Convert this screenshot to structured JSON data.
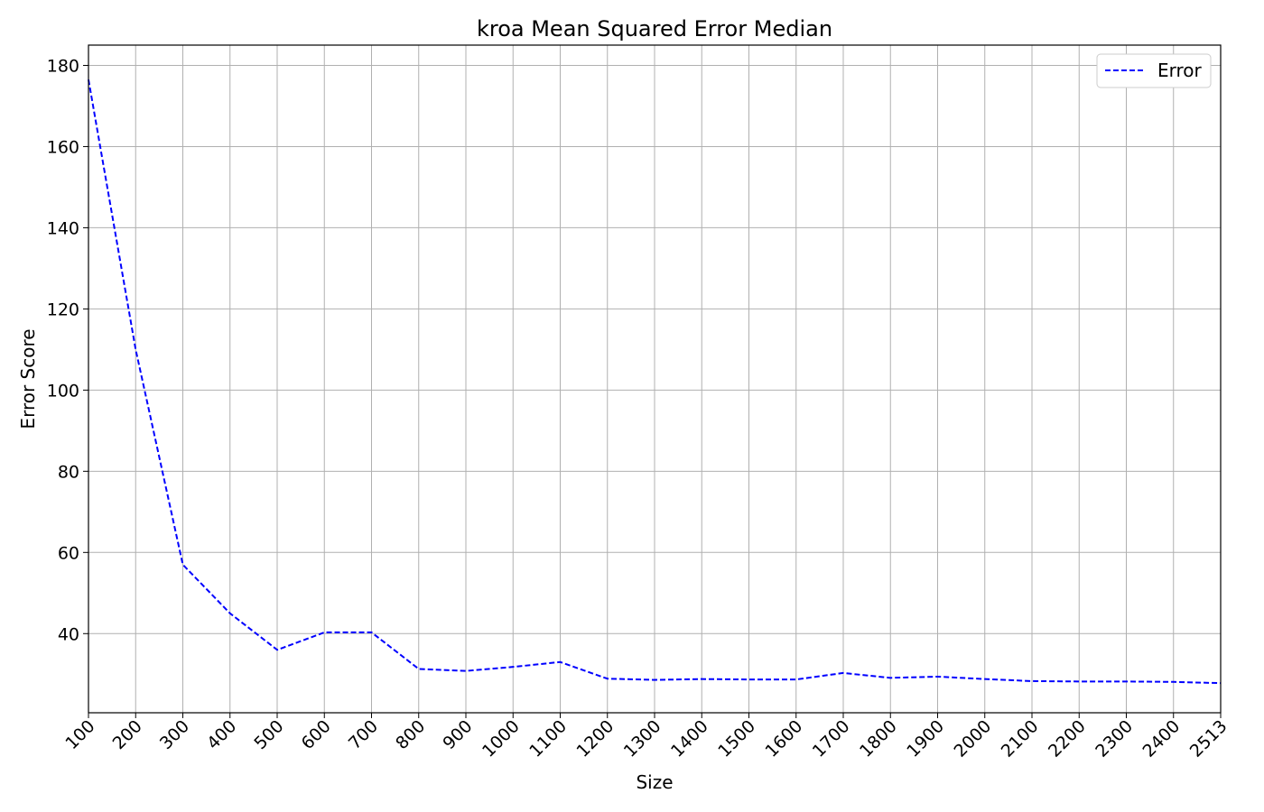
{
  "chart_data": {
    "type": "line",
    "title": "kroa Mean Squared Error Median",
    "xlabel": "Size",
    "ylabel": "Error Score",
    "categories": [
      "100",
      "200",
      "300",
      "400",
      "500",
      "600",
      "700",
      "800",
      "900",
      "1000",
      "1100",
      "1200",
      "1300",
      "1400",
      "1500",
      "1600",
      "1700",
      "1800",
      "1900",
      "2000",
      "2100",
      "2200",
      "2300",
      "2400",
      "2513"
    ],
    "y_ticks": [
      40,
      60,
      80,
      100,
      120,
      140,
      160,
      180
    ],
    "ylim": [
      20.5,
      185
    ],
    "grid": true,
    "legend_position": "top-right",
    "series": [
      {
        "name": "Error",
        "color": "#0000ff",
        "line_style": "dashed",
        "values": [
          176.5,
          110,
          57,
          45,
          36,
          40.3,
          40.3,
          31.3,
          30.8,
          31.8,
          33,
          28.9,
          28.6,
          28.8,
          28.7,
          28.7,
          30.3,
          29.1,
          29.4,
          28.8,
          28.3,
          28.2,
          28.2,
          28.1,
          27.8
        ]
      }
    ]
  }
}
